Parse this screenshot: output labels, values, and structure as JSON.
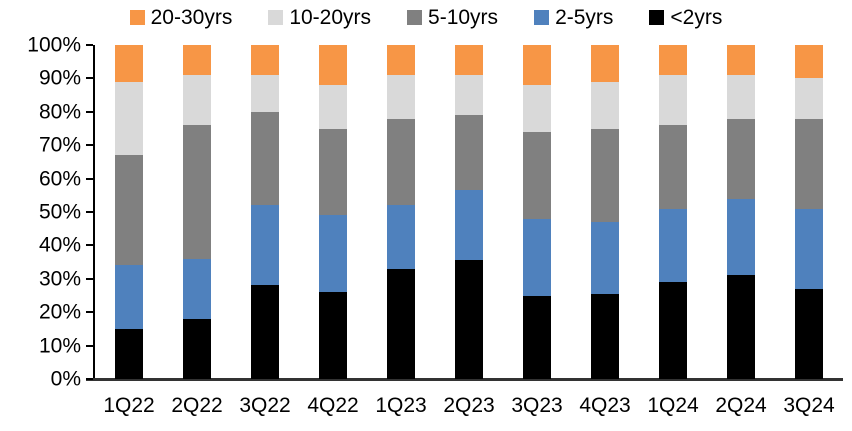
{
  "chart_data": {
    "type": "bar",
    "stacked": true,
    "unit": "percent",
    "title": "",
    "xlabel": "",
    "ylabel": "",
    "grid": false,
    "legend_position": "top",
    "legend_display_order": [
      "20-30yrs",
      "10-20yrs",
      "5-10yrs",
      "2-5yrs",
      "<2yrs"
    ],
    "categories": [
      "1Q22",
      "2Q22",
      "3Q22",
      "4Q22",
      "1Q23",
      "2Q23",
      "3Q23",
      "4Q23",
      "1Q24",
      "2Q24",
      "3Q24"
    ],
    "series": [
      {
        "name": "<2yrs",
        "key": "under-2yrs",
        "color": "#000000",
        "values": [
          15,
          18,
          28,
          26,
          33,
          35.5,
          25,
          25.5,
          29,
          31,
          27
        ]
      },
      {
        "name": "2-5yrs",
        "key": "2-5yrs",
        "color": "#4F81BD",
        "values": [
          19,
          18,
          24,
          23,
          19,
          21,
          23,
          21.5,
          22,
          23,
          24
        ]
      },
      {
        "name": "5-10yrs",
        "key": "5-10yrs",
        "color": "#808080",
        "values": [
          33,
          40,
          28,
          26,
          26,
          22.5,
          26,
          28,
          25,
          24,
          27
        ]
      },
      {
        "name": "10-20yrs",
        "key": "10-20yrs",
        "color": "#D9D9D9",
        "values": [
          22,
          15,
          11,
          13,
          13,
          12,
          14,
          14,
          15,
          13,
          12
        ]
      },
      {
        "name": "20-30yrs",
        "key": "20-30yrs",
        "color": "#F79646",
        "values": [
          11,
          9,
          9,
          12,
          9,
          9,
          12,
          11,
          9,
          9,
          10
        ]
      }
    ],
    "y_axis": {
      "min": 0,
      "max": 100,
      "tick_step": 10,
      "tick_labels": [
        "0%",
        "10%",
        "20%",
        "30%",
        "40%",
        "50%",
        "60%",
        "70%",
        "80%",
        "90%",
        "100%"
      ]
    },
    "axis_color": "#000000"
  }
}
